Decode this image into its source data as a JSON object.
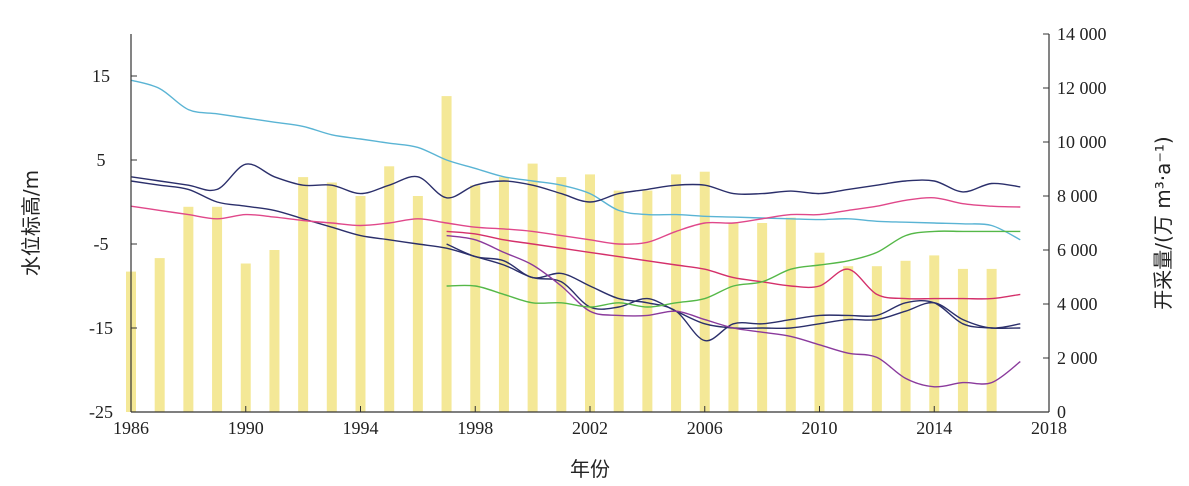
{
  "chart_data": {
    "type": "bar+line",
    "xlabel": "年份",
    "ylabel_left": "水位标高/m",
    "ylabel_right": "开采量/(万 m³·a⁻¹)",
    "xlim": [
      1986,
      2018
    ],
    "ylim_left": [
      -25,
      20
    ],
    "ylim_right": [
      0,
      14000
    ],
    "x_ticks": [
      "1986",
      "1990",
      "1994",
      "1998",
      "2002",
      "2006",
      "2010",
      "2014",
      "2018"
    ],
    "y_left_ticks": [
      "15",
      "5",
      "-5",
      "-15",
      "-25"
    ],
    "y_right_ticks": [
      "14 000",
      "12 000",
      "10 000",
      "8 000",
      "6 000",
      "4 000",
      "2 000",
      "0"
    ],
    "bars": {
      "color": "#f3e58c",
      "years": [
        1986,
        1987,
        1988,
        1989,
        1990,
        1991,
        1992,
        1993,
        1994,
        1995,
        1996,
        1997,
        1998,
        1999,
        2000,
        2001,
        2002,
        2003,
        2004,
        2005,
        2006,
        2007,
        2008,
        2009,
        2010,
        2011,
        2012,
        2013,
        2014,
        2015,
        2016
      ],
      "values": [
        5200,
        5700,
        7600,
        7600,
        5500,
        6000,
        8700,
        8500,
        8000,
        9100,
        8000,
        11700,
        8400,
        8700,
        9200,
        8700,
        8800,
        8200,
        8200,
        8800,
        8900,
        7000,
        7000,
        7200,
        5900,
        5400,
        5400,
        5600,
        5800,
        5300,
        5300
      ]
    },
    "series": [
      {
        "color": "#5ab4d4",
        "x": [
          1986,
          1987,
          1988,
          1989,
          1990,
          1991,
          1992,
          1993,
          1994,
          1995,
          1996,
          1997,
          1998,
          1999,
          2000,
          2001,
          2002,
          2003,
          2004,
          2005,
          2006,
          2007,
          2008,
          2009,
          2010,
          2011,
          2012,
          2013,
          2014,
          2015,
          2016,
          2017
        ],
        "y": [
          14.5,
          13.5,
          11,
          10.5,
          10,
          9.5,
          9,
          8,
          7.5,
          7,
          6.5,
          5,
          4,
          3,
          2.5,
          2,
          1,
          -1,
          -1.5,
          -1.5,
          -1.7,
          -1.8,
          -1.9,
          -2,
          -2.1,
          -2,
          -2.3,
          -2.4,
          -2.5,
          -2.6,
          -2.8,
          -4.5
        ]
      },
      {
        "color": "#2b2f6b",
        "x": [
          1986,
          1987,
          1988,
          1989,
          1990,
          1991,
          1992,
          1993,
          1994,
          1995,
          1996,
          1997,
          1998,
          1999,
          2000,
          2001,
          2002,
          2003,
          2004,
          2005,
          2006,
          2007,
          2008,
          2009,
          2010,
          2011,
          2012,
          2013,
          2014,
          2015,
          2016,
          2017
        ],
        "y": [
          3,
          2.5,
          2,
          1.5,
          4.5,
          3,
          2,
          2,
          1,
          2,
          3,
          0.5,
          2,
          2.5,
          2,
          1,
          0,
          1,
          1.5,
          2,
          2,
          1,
          1,
          1.3,
          1,
          1.5,
          2,
          2.5,
          2.5,
          1.2,
          2.2,
          1.8
        ]
      },
      {
        "color": "#2b2f6b",
        "x": [
          1986,
          1987,
          1988,
          1989,
          1990,
          1991,
          1992,
          1993,
          1994,
          1995,
          1996,
          1997,
          1998,
          1999,
          2000,
          2001,
          2002,
          2003,
          2004,
          2005,
          2006,
          2007,
          2008,
          2009,
          2010,
          2011,
          2012,
          2013,
          2014,
          2015,
          2016,
          2017
        ],
        "y": [
          2.5,
          2,
          1.5,
          0,
          -0.5,
          -1,
          -2,
          -3,
          -4,
          -4.5,
          -5,
          -5.5,
          -6.5,
          -7.5,
          -9,
          -9.5,
          -12.5,
          -12.5,
          -11.5,
          -13,
          -14.5,
          -15,
          -15,
          -15,
          -14.5,
          -14,
          -14,
          -13,
          -12,
          -14,
          -15,
          -14.5
        ]
      },
      {
        "color": "#e0488a",
        "x": [
          1986,
          1987,
          1988,
          1989,
          1990,
          1991,
          1992,
          1993,
          1994,
          1995,
          1996,
          1997,
          1998,
          1999,
          2000,
          2001,
          2002,
          2003,
          2004,
          2005,
          2006,
          2007,
          2008,
          2009,
          2010,
          2011,
          2012,
          2013,
          2014,
          2015,
          2016,
          2017
        ],
        "y": [
          -0.5,
          -1,
          -1.5,
          -2,
          -1.5,
          -1.8,
          -2.2,
          -2.5,
          -2.8,
          -2.5,
          -2,
          -2.5,
          -3,
          -3.2,
          -3.5,
          -4,
          -4.5,
          -5,
          -4.8,
          -3.5,
          -2.5,
          -2.5,
          -2,
          -1.5,
          -1.5,
          -1,
          -0.5,
          0.2,
          0.5,
          -0.2,
          -0.5,
          -0.6
        ]
      },
      {
        "color": "#d4306a",
        "x": [
          1997,
          1998,
          1999,
          2000,
          2001,
          2002,
          2003,
          2004,
          2005,
          2006,
          2007,
          2008,
          2009,
          2010,
          2011,
          2012,
          2013,
          2014,
          2015,
          2016,
          2017
        ],
        "y": [
          -3.5,
          -3.8,
          -4.5,
          -5,
          -5.5,
          -6,
          -6.5,
          -7,
          -7.5,
          -8,
          -9,
          -9.5,
          -10,
          -10,
          -8,
          -11,
          -11.5,
          -11.5,
          -11.5,
          -11.5,
          -11
        ]
      },
      {
        "color": "#2b2f6b",
        "x": [
          1997,
          1998,
          1999,
          2000,
          2001,
          2002,
          2003,
          2004,
          2005,
          2006,
          2007,
          2008,
          2009,
          2010,
          2011,
          2012,
          2013,
          2014,
          2015,
          2016,
          2017
        ],
        "y": [
          -5,
          -6.5,
          -7,
          -9,
          -8.5,
          -10,
          -11.5,
          -12,
          -13,
          -16.5,
          -14.5,
          -14.5,
          -14,
          -13.5,
          -13.5,
          -13.5,
          -12,
          -12,
          -14.5,
          -15,
          -15
        ]
      },
      {
        "color": "#8a3a9c",
        "x": [
          1997,
          1998,
          1999,
          2000,
          2001,
          2002,
          2003,
          2004,
          2005,
          2006,
          2007,
          2008,
          2009,
          2010,
          2011,
          2012,
          2013,
          2014,
          2015,
          2016,
          2017
        ],
        "y": [
          -4,
          -4.5,
          -6,
          -7.5,
          -10,
          -13,
          -13.5,
          -13.5,
          -13,
          -14,
          -15,
          -15.5,
          -16,
          -17,
          -18,
          -18.5,
          -21,
          -22,
          -21.5,
          -21.5,
          -19
        ]
      },
      {
        "color": "#55b848",
        "x": [
          1997,
          1998,
          1999,
          2000,
          2001,
          2002,
          2003,
          2004,
          2005,
          2006,
          2007,
          2008,
          2009,
          2010,
          2011,
          2012,
          2013,
          2014,
          2015,
          2016,
          2017
        ],
        "y": [
          -10,
          -10,
          -11,
          -12,
          -12,
          -12.5,
          -12,
          -12.5,
          -12,
          -11.5,
          -10,
          -9.5,
          -8,
          -7.5,
          -7,
          -6,
          -4,
          -3.5,
          -3.5,
          -3.5,
          -3.5
        ]
      }
    ]
  }
}
